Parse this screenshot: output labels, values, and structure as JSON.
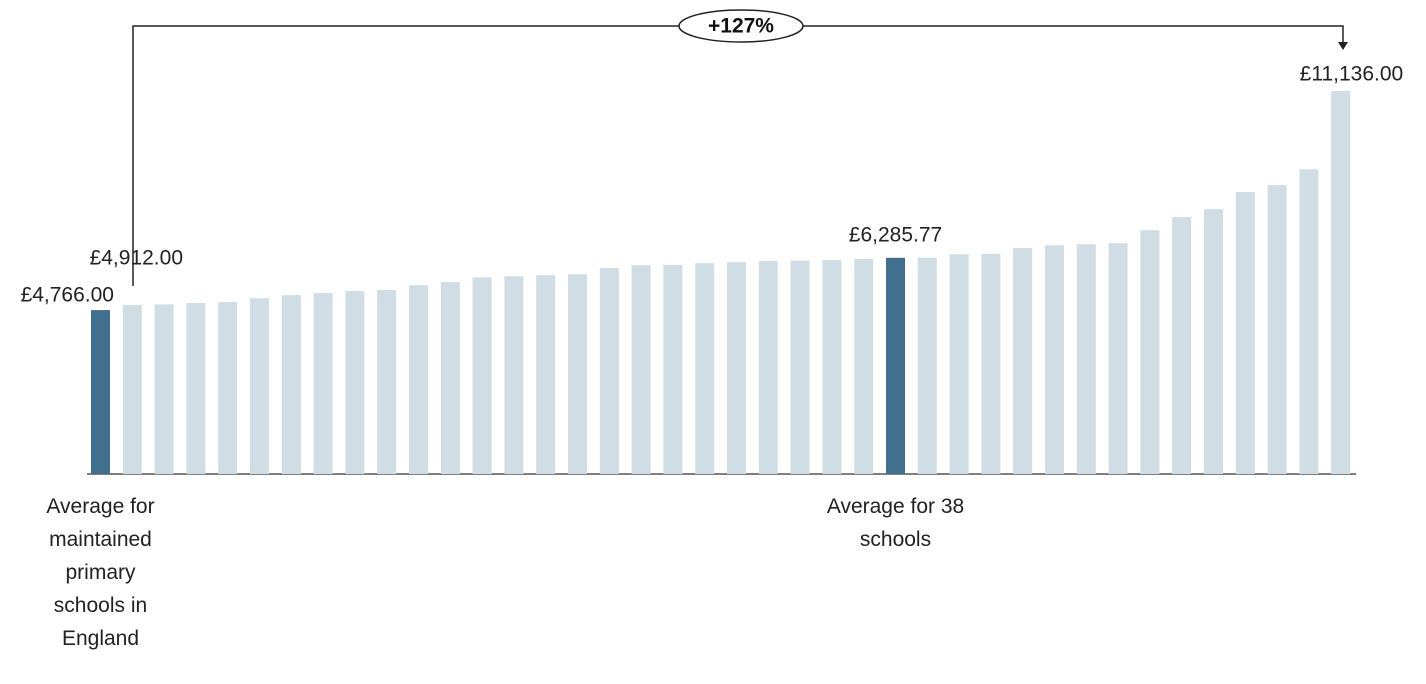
{
  "chart_data": {
    "type": "bar",
    "annotation": "+127%",
    "categories": [
      "Average for maintained primary schools in England",
      null,
      null,
      null,
      null,
      null,
      null,
      null,
      null,
      null,
      null,
      null,
      null,
      null,
      null,
      null,
      null,
      null,
      null,
      null,
      null,
      null,
      null,
      null,
      null,
      "Average for 38 schools",
      null,
      null,
      null,
      null,
      null,
      null,
      null,
      null,
      null,
      null,
      null,
      null,
      null,
      null
    ],
    "values": [
      4766,
      4912,
      4930,
      4970,
      5000,
      5110,
      5200,
      5260,
      5320,
      5350,
      5490,
      5580,
      5720,
      5750,
      5780,
      5810,
      5990,
      6070,
      6080,
      6130,
      6160,
      6190,
      6200,
      6220,
      6250,
      6285.77,
      6290,
      6390,
      6400,
      6570,
      6650,
      6680,
      6710,
      7090,
      7470,
      7700,
      8200,
      8400,
      8860,
      11136
    ],
    "value_labels": [
      "£4,766.00",
      "£4,912.00",
      null,
      null,
      null,
      null,
      null,
      null,
      null,
      null,
      null,
      null,
      null,
      null,
      null,
      null,
      null,
      null,
      null,
      null,
      null,
      null,
      null,
      null,
      null,
      "£6,285.77",
      null,
      null,
      null,
      null,
      null,
      null,
      null,
      null,
      null,
      null,
      null,
      null,
      null,
      "£11,136.00"
    ],
    "color": "#d0dde5",
    "highlight_color": "#41708f"
  }
}
